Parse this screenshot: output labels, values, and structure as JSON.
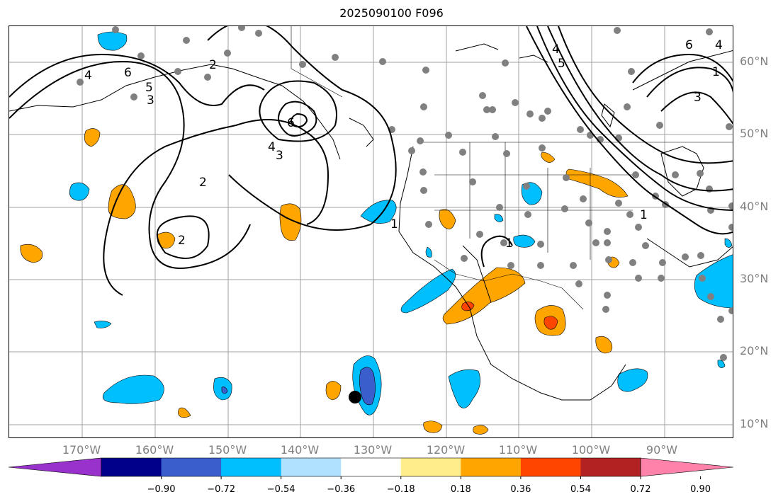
{
  "title": "2025090100 F096",
  "lat_labels": [
    "60°N",
    "50°N",
    "40°N",
    "30°N",
    "20°N",
    "10°N"
  ],
  "lon_labels": [
    "170°W",
    "160°W",
    "150°W",
    "140°W",
    "130°W",
    "120°W",
    "110°W",
    "100°W",
    "90°W"
  ],
  "contour_labels": [
    "4",
    "6",
    "5",
    "3",
    "2",
    "6",
    "4",
    "3",
    "2",
    "2",
    "1",
    "1",
    "4",
    "5",
    "6",
    "4",
    "1",
    "3",
    "1"
  ],
  "colorbar": {
    "tick_labels": [
      "−0.90",
      "−0.72",
      "−0.54",
      "−0.36",
      "−0.18",
      "0.18",
      "0.36",
      "0.54",
      "0.72",
      "0.90"
    ],
    "colors": [
      "#9932cc",
      "#00008b",
      "#3a5fcd",
      "#00bfff",
      "#b0e2ff",
      "#ffffff",
      "#ffec8b",
      "#ffa500",
      "#ff4500",
      "#b22222",
      "#ff82ab"
    ],
    "levels": [
      -0.9,
      -0.72,
      -0.54,
      -0.36,
      -0.18,
      0.18,
      0.36,
      0.54,
      0.72,
      0.9
    ]
  },
  "colors": {
    "contour": "#000000",
    "grid": "#a0a0a0",
    "station_dot": "#808080",
    "marker": "#000000"
  }
}
